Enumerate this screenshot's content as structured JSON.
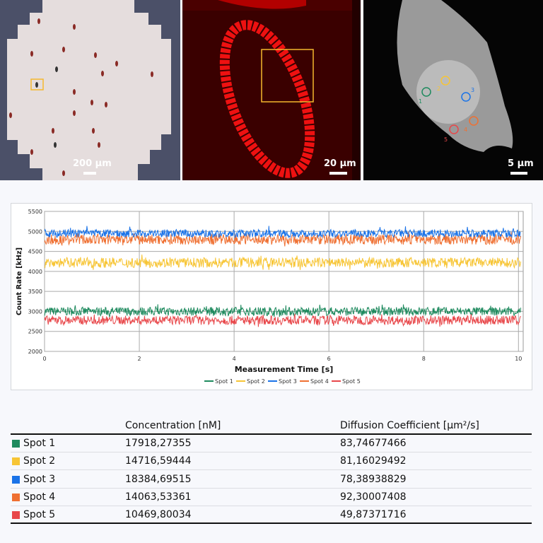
{
  "images": [
    {
      "scale_label": "200 µm"
    },
    {
      "scale_label": "20 µm"
    },
    {
      "scale_label": "5 µm",
      "markers": [
        "1",
        "2",
        "3",
        "4",
        "5"
      ]
    }
  ],
  "chart_data": {
    "type": "line",
    "xlabel": "Measurement Time [s]",
    "ylabel": "Count Rate [kHz]",
    "xlim": [
      0,
      10.1
    ],
    "ylim": [
      2000,
      5500
    ],
    "xticks": [
      "0",
      "2",
      "4",
      "6",
      "8",
      "10"
    ],
    "yticks": [
      "2000",
      "2500",
      "3000",
      "3500",
      "4000",
      "4500",
      "5000",
      "5500"
    ],
    "grid": true,
    "legend": "bottom",
    "series": [
      {
        "name": "Spot 1",
        "color": "#1e8a5e",
        "mean": 3000,
        "range": [
          2850,
          3180
        ]
      },
      {
        "name": "Spot 2",
        "color": "#f7c535",
        "mean": 4220,
        "range": [
          4030,
          4420
        ]
      },
      {
        "name": "Spot 3",
        "color": "#1a73e8",
        "mean": 4950,
        "range": [
          4850,
          5150
        ]
      },
      {
        "name": "Spot 4",
        "color": "#ef7032",
        "mean": 4800,
        "range": [
          4600,
          5000
        ]
      },
      {
        "name": "Spot 5",
        "color": "#e8474a",
        "mean": 2780,
        "range": [
          2600,
          2950
        ]
      }
    ]
  },
  "table": {
    "headers": [
      "",
      "Concentration [nM]",
      "Diffusion Coefficient [µm²/s]"
    ],
    "rows": [
      {
        "label": "Spot 1",
        "color": "#1e8a5e",
        "concentration": "17918,27355",
        "diffusion": "83,74677466"
      },
      {
        "label": "Spot 2",
        "color": "#f7c535",
        "concentration": "14716,59444",
        "diffusion": "81,16029492"
      },
      {
        "label": "Spot 3",
        "color": "#1a73e8",
        "concentration": "18384,69515",
        "diffusion": "78,38938829"
      },
      {
        "label": "Spot 4",
        "color": "#ef7032",
        "concentration": "14063,53361",
        "diffusion": "92,30007408"
      },
      {
        "label": "Spot 5",
        "color": "#e8474a",
        "concentration": "10469,80034",
        "diffusion": "49,87371716"
      }
    ]
  }
}
